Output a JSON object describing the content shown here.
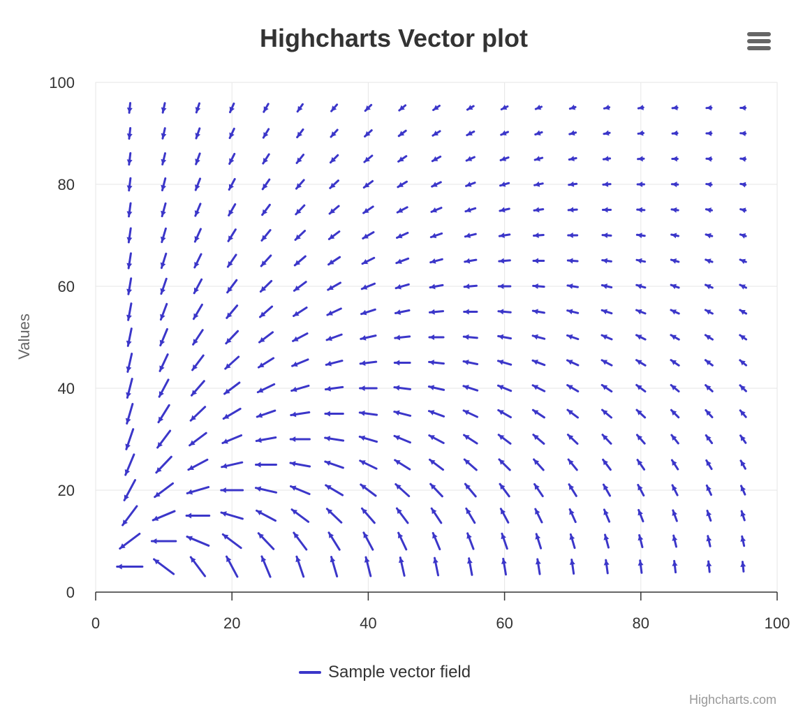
{
  "chart_data": {
    "type": "vector",
    "title": "Highcharts Vector plot",
    "xlabel": "",
    "ylabel": "Values",
    "xlim": [
      0,
      100
    ],
    "ylim": [
      0,
      100
    ],
    "x_ticks": [
      "0",
      "20",
      "40",
      "60",
      "80",
      "100"
    ],
    "y_ticks": [
      "0",
      "20",
      "40",
      "60",
      "80",
      "100"
    ],
    "grid": true,
    "legend_position": "bottom-center",
    "series": [
      {
        "name": "Sample vector field",
        "color": "#3b36c9",
        "grid_x": [
          5,
          10,
          15,
          20,
          25,
          30,
          35,
          40,
          45,
          50,
          55,
          60,
          65,
          70,
          75,
          80,
          85,
          90,
          95
        ],
        "grid_y": [
          5,
          10,
          15,
          20,
          25,
          30,
          35,
          40,
          45,
          50,
          55,
          60,
          65,
          70,
          75,
          80,
          85,
          90,
          95
        ],
        "vector_field": "arrow length and direction per point, rotating counter-clockwise with distance from the lower-left corner"
      }
    ]
  },
  "ui": {
    "menu_icon": "hamburger-menu-icon",
    "credits": "Highcharts.com"
  }
}
